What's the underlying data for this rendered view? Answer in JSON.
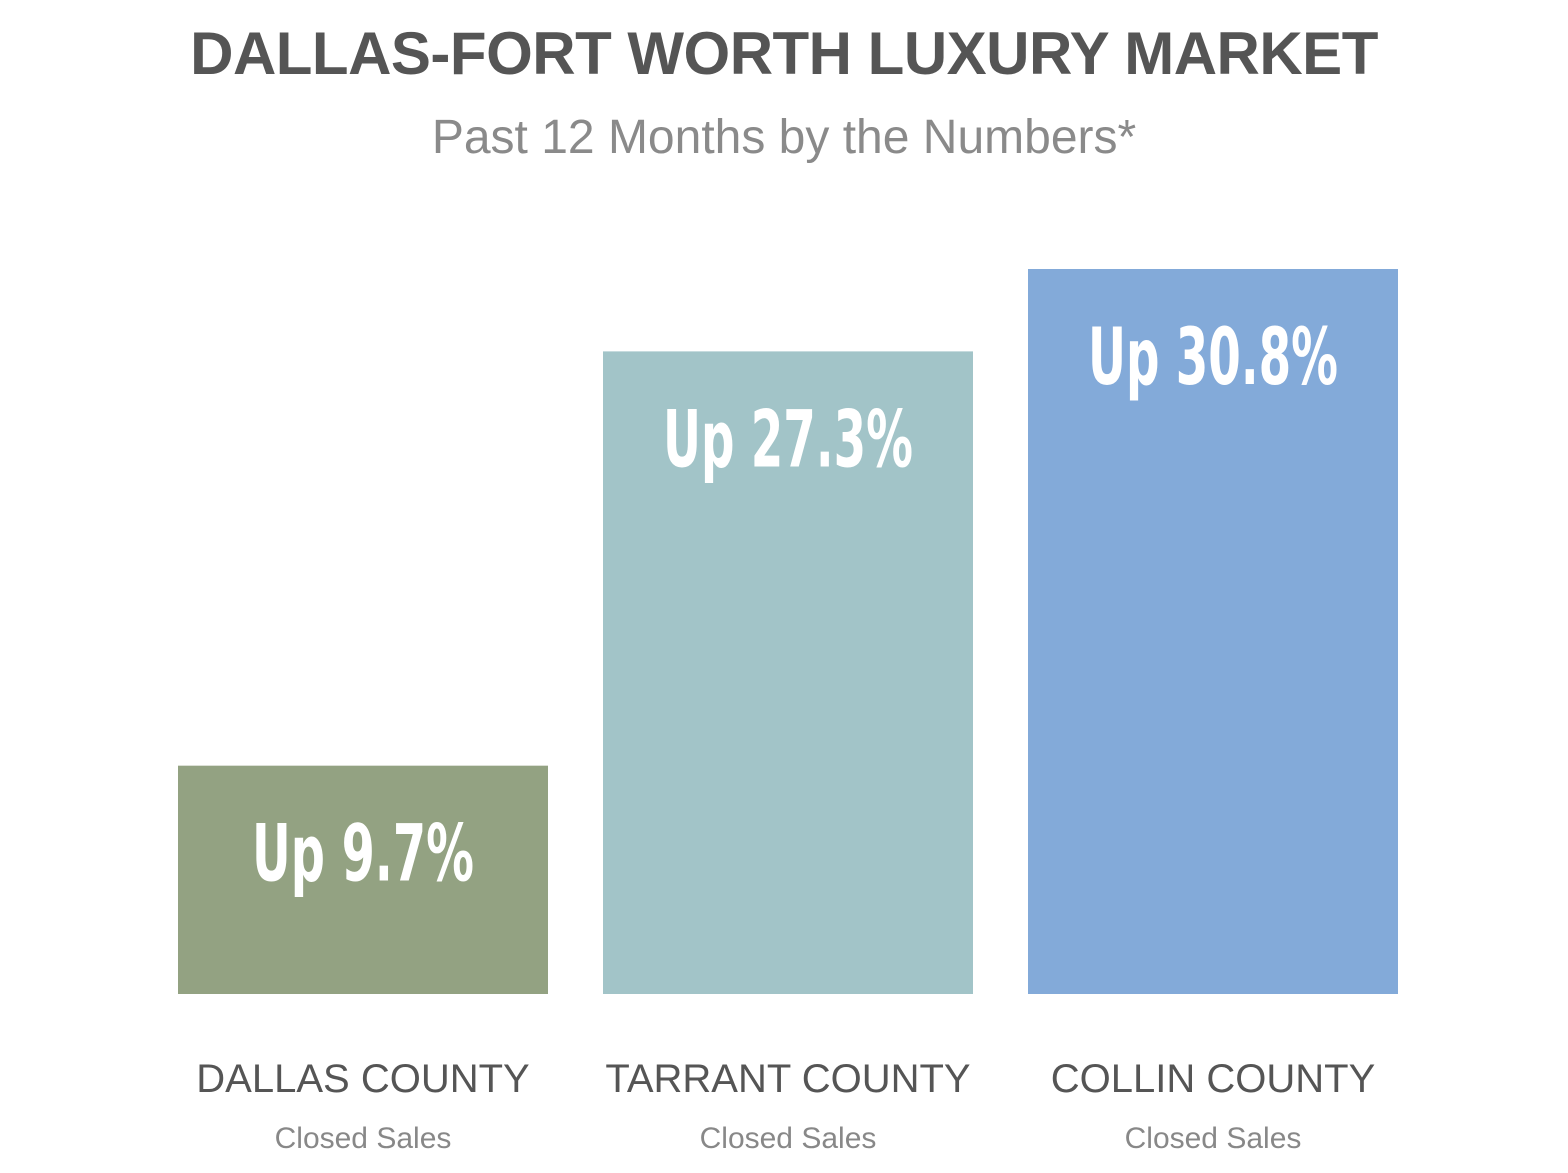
{
  "chart_data": {
    "type": "bar",
    "title": "DALLAS-FORT WORTH LUXURY MARKET",
    "subtitle": "Past 12 Months by the Numbers*",
    "xlabel": "",
    "ylabel": "",
    "ylim": [
      0,
      35
    ],
    "grid": false,
    "categories": [
      "DALLAS COUNTY",
      "TARRANT COUNTY",
      "COLLIN COUNTY"
    ],
    "category_sublabels": [
      "Closed Sales",
      "Closed Sales",
      "Closed Sales"
    ],
    "values": [
      9.7,
      27.3,
      30.8
    ],
    "value_labels": [
      "Up 9.7%",
      "Up 27.3%",
      "Up 30.8%"
    ],
    "colors": [
      "#93a282",
      "#a2c4c8",
      "#83aad9"
    ]
  }
}
